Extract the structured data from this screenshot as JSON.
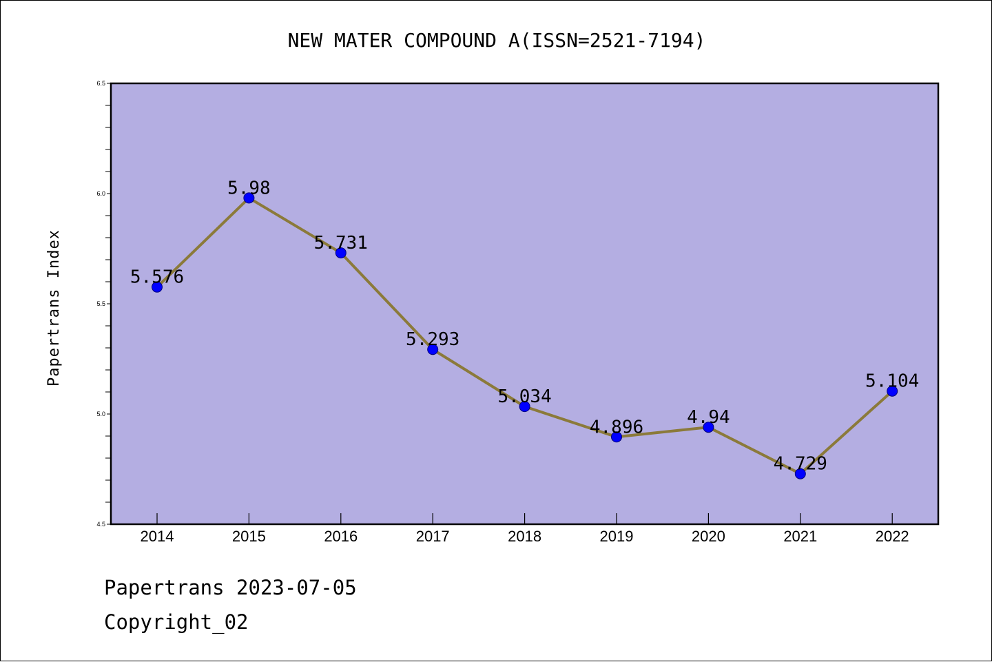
{
  "chart_data": {
    "type": "line",
    "title": "NEW MATER COMPOUND A(ISSN=2521-7194)",
    "xlabel": "",
    "ylabel": "Papertrans Index",
    "categories": [
      "2014",
      "2015",
      "2016",
      "2017",
      "2018",
      "2019",
      "2020",
      "2021",
      "2022"
    ],
    "series": [
      {
        "values": [
          5.576,
          5.98,
          5.731,
          5.293,
          5.034,
          4.896,
          4.94,
          4.729,
          5.104
        ],
        "labels": [
          "5.576",
          "5.98",
          "5.731",
          "5.293",
          "5.034",
          "4.896",
          "4.94",
          "4.729",
          "5.104"
        ],
        "line_color": "#8b7a3a",
        "marker_color": "#0000ff"
      }
    ],
    "yticks": [
      "4.5",
      "5.0",
      "5.5",
      "6.0",
      "6.5"
    ],
    "ylim": [
      4.5,
      6.5
    ],
    "grid": false,
    "legend": "none",
    "plot_background": "#b4aee2"
  },
  "footer": {
    "line1": "Papertrans 2023-07-05",
    "line2": "Copyright_02"
  }
}
